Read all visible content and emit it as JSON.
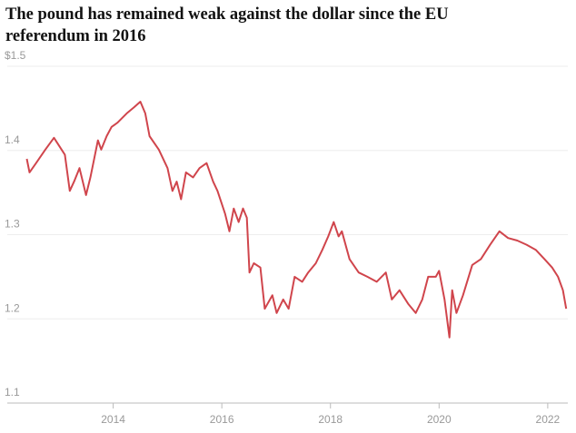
{
  "chart_data": {
    "type": "line",
    "title": "The pound has remained weak against the dollar since the EU referendum in 2016",
    "x": [
      2012.41,
      2012.46,
      2012.58,
      2012.75,
      2012.91,
      2013.0,
      2013.11,
      2013.2,
      2013.28,
      2013.38,
      2013.5,
      2013.58,
      2013.72,
      2013.78,
      2013.88,
      2013.97,
      2014.08,
      2014.25,
      2014.38,
      2014.5,
      2014.59,
      2014.67,
      2014.84,
      2015.0,
      2015.09,
      2015.17,
      2015.25,
      2015.34,
      2015.47,
      2015.59,
      2015.72,
      2015.84,
      2015.92,
      2016.06,
      2016.14,
      2016.22,
      2016.31,
      2016.39,
      2016.46,
      2016.51,
      2016.59,
      2016.71,
      2016.79,
      2016.93,
      2017.01,
      2017.13,
      2017.23,
      2017.34,
      2017.48,
      2017.59,
      2017.73,
      2017.85,
      2017.96,
      2018.06,
      2018.15,
      2018.21,
      2018.35,
      2018.52,
      2018.68,
      2018.85,
      2019.02,
      2019.13,
      2019.27,
      2019.43,
      2019.57,
      2019.69,
      2019.8,
      2019.94,
      2020.0,
      2020.1,
      2020.19,
      2020.24,
      2020.32,
      2020.44,
      2020.61,
      2020.77,
      2020.94,
      2021.11,
      2021.27,
      2021.44,
      2021.61,
      2021.78,
      2021.94,
      2022.08,
      2022.19,
      2022.28,
      2022.34
    ],
    "series": [
      {
        "color": "#d0454c",
        "values": [
          1.39,
          1.374,
          1.385,
          1.401,
          1.415,
          1.406,
          1.395,
          1.352,
          1.363,
          1.379,
          1.347,
          1.368,
          1.412,
          1.401,
          1.417,
          1.428,
          1.433,
          1.444,
          1.451,
          1.458,
          1.444,
          1.417,
          1.401,
          1.379,
          1.352,
          1.363,
          1.342,
          1.374,
          1.368,
          1.379,
          1.385,
          1.363,
          1.352,
          1.325,
          1.304,
          1.331,
          1.315,
          1.331,
          1.32,
          1.255,
          1.266,
          1.261,
          1.212,
          1.228,
          1.207,
          1.223,
          1.212,
          1.25,
          1.244,
          1.255,
          1.266,
          1.282,
          1.298,
          1.315,
          1.298,
          1.304,
          1.271,
          1.255,
          1.25,
          1.244,
          1.255,
          1.223,
          1.234,
          1.218,
          1.207,
          1.223,
          1.25,
          1.25,
          1.257,
          1.223,
          1.178,
          1.234,
          1.207,
          1.228,
          1.264,
          1.271,
          1.288,
          1.304,
          1.296,
          1.293,
          1.288,
          1.282,
          1.271,
          1.261,
          1.25,
          1.234,
          1.212
        ]
      }
    ],
    "xlim": [
      2012.05,
      2022.37
    ],
    "xticks": [
      2014,
      2016,
      2018,
      2020,
      2022
    ],
    "ylim": [
      1.1,
      1.5
    ],
    "yticks": [
      1.1,
      1.2,
      1.3,
      1.4,
      {
        "value": 1.5,
        "label": "$1.5"
      }
    ],
    "grid": true
  }
}
